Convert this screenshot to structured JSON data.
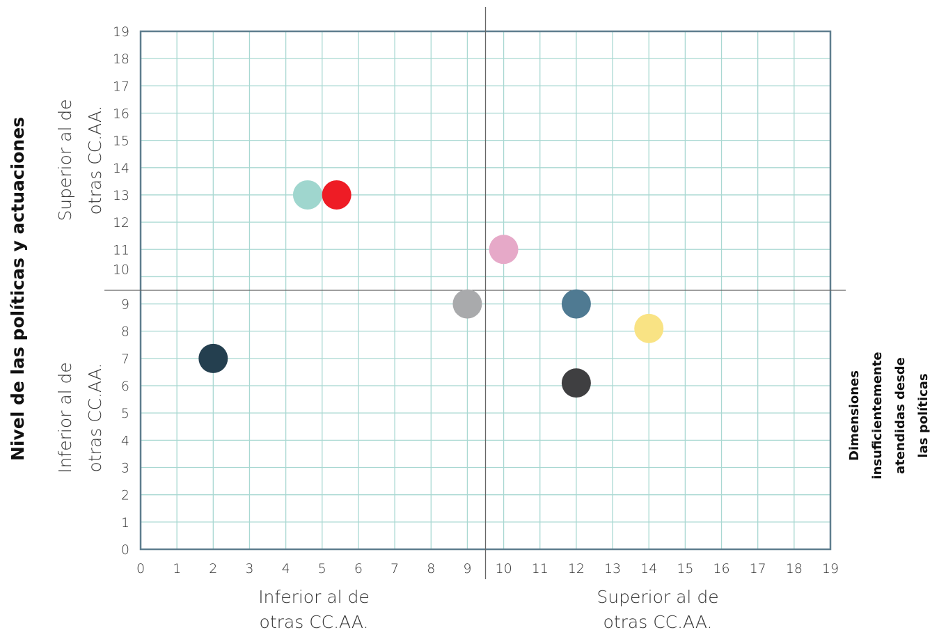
{
  "chart_data": {
    "type": "scatter",
    "xlim": [
      0,
      19
    ],
    "ylim": [
      0,
      19
    ],
    "x_ticks": [
      "0",
      "1",
      "2",
      "3",
      "4",
      "5",
      "6",
      "7",
      "8",
      "9",
      "10",
      "11",
      "12",
      "13",
      "14",
      "15",
      "16",
      "17",
      "18",
      "19"
    ],
    "y_ticks": [
      "0",
      "1",
      "2",
      "3",
      "4",
      "5",
      "6",
      "7",
      "8",
      "9",
      "10",
      "11",
      "12",
      "13",
      "14",
      "15",
      "16",
      "17",
      "18",
      "19"
    ],
    "x_divider": 9.5,
    "y_divider": 9.5,
    "grid": true,
    "points": [
      {
        "x": 2,
        "y": 7,
        "color": "#243f4f"
      },
      {
        "x": 4.6,
        "y": 13,
        "color": "#9fd6ce"
      },
      {
        "x": 5.4,
        "y": 13,
        "color": "#ee1c25"
      },
      {
        "x": 9,
        "y": 9,
        "color": "#a9aaac"
      },
      {
        "x": 10,
        "y": 11,
        "color": "#e6a9c8"
      },
      {
        "x": 12,
        "y": 9,
        "color": "#4f7a92"
      },
      {
        "x": 12,
        "y": 6.1,
        "color": "#3f3f41"
      },
      {
        "x": 14,
        "y": 8.1,
        "color": "#f9e384"
      }
    ],
    "y_axis_title": "Nivel de las políticas y actuaciones",
    "right_title_lines": [
      "Dimensiones",
      "insuficientemente",
      "atendidas desde",
      "las políticas"
    ],
    "y_upper_lines": [
      "Superior al de",
      "otras CC.AA."
    ],
    "y_lower_lines": [
      "Inferior al de",
      "otras CC.AA."
    ],
    "x_left_lines": [
      "Inferior al de",
      "otras CC.AA."
    ],
    "x_right_lines": [
      "Superior al de",
      "otras CC.AA."
    ]
  },
  "colors": {
    "grid": "#a9d8d2",
    "frame": "#5e7d8e",
    "divider": "#666666"
  }
}
